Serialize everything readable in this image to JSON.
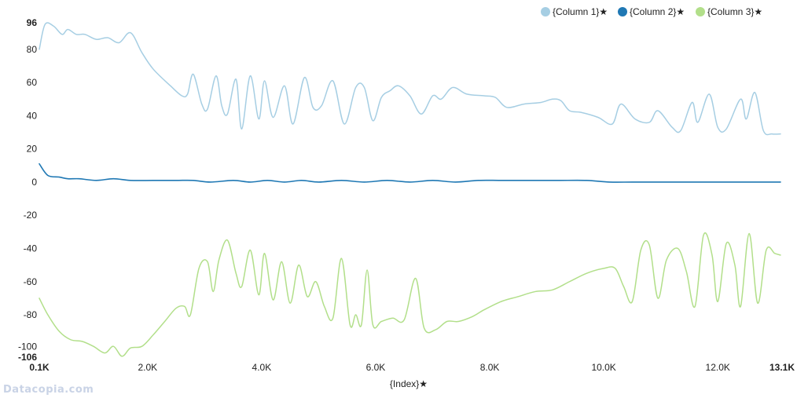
{
  "watermark": "Datacopia.com",
  "chart_data": {
    "type": "line",
    "xlabel": "{Index}★",
    "ylabel": "",
    "xlim": [
      100,
      13100
    ],
    "ylim": [
      -106,
      96
    ],
    "x_ticks": [
      {
        "value": 100,
        "label": "0.1K",
        "bold": true
      },
      {
        "value": 2000,
        "label": "2.0K",
        "bold": false
      },
      {
        "value": 4000,
        "label": "4.0K",
        "bold": false
      },
      {
        "value": 6000,
        "label": "6.0K",
        "bold": false
      },
      {
        "value": 8000,
        "label": "8.0K",
        "bold": false
      },
      {
        "value": 10000,
        "label": "10.0K",
        "bold": false
      },
      {
        "value": 12000,
        "label": "12.0K",
        "bold": false
      },
      {
        "value": 13100,
        "label": "13.1K",
        "bold": true
      }
    ],
    "y_ticks": [
      {
        "value": 96,
        "label": "96",
        "bold": true
      },
      {
        "value": 80,
        "label": "80",
        "bold": false
      },
      {
        "value": 60,
        "label": "60",
        "bold": false
      },
      {
        "value": 40,
        "label": "40",
        "bold": false
      },
      {
        "value": 20,
        "label": "20",
        "bold": false
      },
      {
        "value": 0,
        "label": "0",
        "bold": false
      },
      {
        "value": -20,
        "label": "-20",
        "bold": false
      },
      {
        "value": -40,
        "label": "-40",
        "bold": false
      },
      {
        "value": -60,
        "label": "-60",
        "bold": false
      },
      {
        "value": -80,
        "label": "-80",
        "bold": false
      },
      {
        "value": -100,
        "label": "-100",
        "bold": false
      },
      {
        "value": -106,
        "label": "-106",
        "bold": true
      }
    ],
    "grid": false,
    "legend_position": "top-right",
    "series": [
      {
        "name": "{Column 1}★",
        "color": "#a6cee3",
        "points": [
          [
            100,
            80
          ],
          [
            200,
            95
          ],
          [
            350,
            94
          ],
          [
            500,
            89
          ],
          [
            600,
            92
          ],
          [
            750,
            89
          ],
          [
            900,
            89
          ],
          [
            1100,
            86
          ],
          [
            1300,
            87
          ],
          [
            1500,
            84
          ],
          [
            1700,
            90
          ],
          [
            1900,
            78
          ],
          [
            2100,
            68
          ],
          [
            2400,
            58
          ],
          [
            2600,
            52
          ],
          [
            2700,
            53
          ],
          [
            2800,
            65
          ],
          [
            2950,
            47
          ],
          [
            3050,
            44
          ],
          [
            3200,
            64
          ],
          [
            3300,
            46
          ],
          [
            3400,
            41
          ],
          [
            3550,
            62
          ],
          [
            3650,
            32
          ],
          [
            3800,
            64
          ],
          [
            3950,
            38
          ],
          [
            4050,
            61
          ],
          [
            4200,
            39
          ],
          [
            4400,
            58
          ],
          [
            4550,
            35
          ],
          [
            4750,
            63
          ],
          [
            4900,
            45
          ],
          [
            5050,
            46
          ],
          [
            5250,
            61
          ],
          [
            5450,
            35
          ],
          [
            5650,
            57
          ],
          [
            5800,
            57
          ],
          [
            5950,
            37
          ],
          [
            6100,
            51
          ],
          [
            6250,
            55
          ],
          [
            6400,
            58
          ],
          [
            6600,
            52
          ],
          [
            6800,
            41
          ],
          [
            7000,
            52
          ],
          [
            7150,
            50
          ],
          [
            7350,
            57
          ],
          [
            7600,
            53
          ],
          [
            7900,
            52
          ],
          [
            8100,
            51
          ],
          [
            8300,
            45
          ],
          [
            8600,
            47
          ],
          [
            8900,
            48
          ],
          [
            9100,
            50
          ],
          [
            9250,
            49
          ],
          [
            9400,
            43
          ],
          [
            9600,
            42
          ],
          [
            9900,
            39
          ],
          [
            10150,
            35
          ],
          [
            10300,
            47
          ],
          [
            10550,
            38
          ],
          [
            10800,
            36
          ],
          [
            10950,
            43
          ],
          [
            11200,
            33
          ],
          [
            11350,
            31
          ],
          [
            11550,
            48
          ],
          [
            11650,
            36
          ],
          [
            11850,
            53
          ],
          [
            12000,
            33
          ],
          [
            12150,
            32
          ],
          [
            12400,
            50
          ],
          [
            12500,
            38
          ],
          [
            12650,
            54
          ],
          [
            12800,
            31
          ],
          [
            12950,
            29
          ],
          [
            13100,
            29
          ]
        ]
      },
      {
        "name": "{Column 2}★",
        "color": "#1f78b4",
        "points": [
          [
            100,
            11
          ],
          [
            250,
            4
          ],
          [
            450,
            3
          ],
          [
            600,
            2
          ],
          [
            800,
            2
          ],
          [
            1100,
            1
          ],
          [
            1400,
            2
          ],
          [
            1700,
            1
          ],
          [
            2100,
            1
          ],
          [
            2500,
            1
          ],
          [
            2800,
            1
          ],
          [
            3100,
            0
          ],
          [
            3500,
            1
          ],
          [
            3800,
            0
          ],
          [
            4100,
            1
          ],
          [
            4400,
            0
          ],
          [
            4700,
            1
          ],
          [
            5000,
            0
          ],
          [
            5400,
            1
          ],
          [
            5800,
            0
          ],
          [
            6200,
            1
          ],
          [
            6600,
            0
          ],
          [
            7000,
            1
          ],
          [
            7400,
            0
          ],
          [
            7800,
            1
          ],
          [
            8200,
            1
          ],
          [
            8700,
            1
          ],
          [
            9200,
            1
          ],
          [
            9700,
            1
          ],
          [
            10100,
            0
          ],
          [
            10500,
            0
          ],
          [
            11000,
            0
          ],
          [
            11500,
            0
          ],
          [
            12000,
            0
          ],
          [
            12500,
            0
          ],
          [
            13100,
            0
          ]
        ]
      },
      {
        "name": "{Column 3}★",
        "color": "#b2df8a",
        "points": [
          [
            100,
            -70
          ],
          [
            250,
            -80
          ],
          [
            450,
            -90
          ],
          [
            650,
            -95
          ],
          [
            850,
            -96
          ],
          [
            1050,
            -99
          ],
          [
            1250,
            -103
          ],
          [
            1400,
            -99
          ],
          [
            1550,
            -105
          ],
          [
            1700,
            -100
          ],
          [
            1900,
            -99
          ],
          [
            2100,
            -92
          ],
          [
            2300,
            -84
          ],
          [
            2500,
            -76
          ],
          [
            2650,
            -75
          ],
          [
            2750,
            -80
          ],
          [
            2900,
            -52
          ],
          [
            3050,
            -48
          ],
          [
            3150,
            -66
          ],
          [
            3250,
            -47
          ],
          [
            3400,
            -35
          ],
          [
            3550,
            -55
          ],
          [
            3650,
            -63
          ],
          [
            3800,
            -41
          ],
          [
            3950,
            -68
          ],
          [
            4050,
            -43
          ],
          [
            4200,
            -71
          ],
          [
            4350,
            -48
          ],
          [
            4500,
            -73
          ],
          [
            4650,
            -50
          ],
          [
            4800,
            -69
          ],
          [
            4950,
            -60
          ],
          [
            5100,
            -75
          ],
          [
            5250,
            -82
          ],
          [
            5400,
            -46
          ],
          [
            5550,
            -86
          ],
          [
            5650,
            -80
          ],
          [
            5750,
            -86
          ],
          [
            5850,
            -53
          ],
          [
            5950,
            -86
          ],
          [
            6100,
            -84
          ],
          [
            6300,
            -82
          ],
          [
            6500,
            -83
          ],
          [
            6700,
            -58
          ],
          [
            6850,
            -88
          ],
          [
            7050,
            -89
          ],
          [
            7250,
            -84
          ],
          [
            7450,
            -84
          ],
          [
            7700,
            -81
          ],
          [
            7900,
            -77
          ],
          [
            8200,
            -72
          ],
          [
            8500,
            -69
          ],
          [
            8800,
            -66
          ],
          [
            9100,
            -65
          ],
          [
            9400,
            -60
          ],
          [
            9700,
            -55
          ],
          [
            10000,
            -52
          ],
          [
            10200,
            -52
          ],
          [
            10350,
            -63
          ],
          [
            10500,
            -72
          ],
          [
            10650,
            -41
          ],
          [
            10800,
            -38
          ],
          [
            10950,
            -70
          ],
          [
            11100,
            -47
          ],
          [
            11300,
            -40
          ],
          [
            11450,
            -54
          ],
          [
            11600,
            -75
          ],
          [
            11750,
            -32
          ],
          [
            11900,
            -44
          ],
          [
            12000,
            -72
          ],
          [
            12150,
            -37
          ],
          [
            12300,
            -50
          ],
          [
            12400,
            -75
          ],
          [
            12550,
            -31
          ],
          [
            12700,
            -73
          ],
          [
            12850,
            -41
          ],
          [
            13000,
            -43
          ],
          [
            13100,
            -44
          ]
        ]
      }
    ]
  }
}
